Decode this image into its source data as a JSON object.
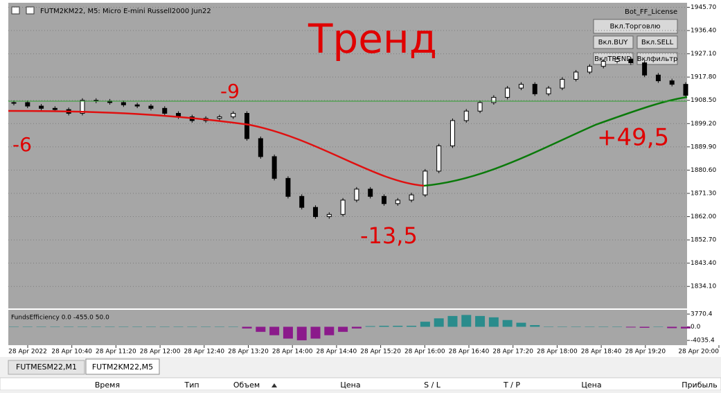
{
  "window": {
    "title": "FUTM2KM22, M5:  Micro E-mini Russell2000 Jun22",
    "license": "Bot_FF_License"
  },
  "buttons": [
    "Вкл.Торговлю",
    "Вкл.BUY",
    "Вкл.SELL",
    "ВклTREND",
    "Вклфильтр"
  ],
  "annotations": [
    "Тренд",
    "-6",
    "-9",
    "-13,5",
    "+49,5"
  ],
  "chart_data": {
    "type": "candlestick",
    "values": [
      1907.6,
      1906.2,
      1905.3,
      1904.8,
      1903.3,
      1908.5,
      1908.2,
      1907.6,
      1906.7,
      1906.2,
      1905.3,
      1903.3,
      1901.9,
      1900.4,
      1901.3,
      1901.9,
      1903.3,
      1893.2,
      1886.0,
      1877.3,
      1870.1,
      1865.7,
      1862.0,
      1862.9,
      1868.6,
      1873.0,
      1870.1,
      1867.2,
      1868.6,
      1870.7,
      1880.2,
      1890.3,
      1900.4,
      1904.2,
      1907.6,
      1909.7,
      1913.4,
      1914.9,
      1911.1,
      1913.4,
      1916.9,
      1919.8,
      1922.1,
      1924.1,
      1925.0,
      1923.5,
      1918.6,
      1916.3,
      1914.9,
      1910.5
    ],
    "ylim": [
      1825.3,
      1947.5
    ],
    "yticks": [
      {
        "value": 1945.7,
        "label": "1945.70"
      },
      {
        "value": 1936.4,
        "label": "1936.40"
      },
      {
        "value": 1927.1,
        "label": "1927.10"
      },
      {
        "value": 1917.8,
        "label": "1917.80"
      },
      {
        "value": 1908.5,
        "label": "1908.50"
      },
      {
        "value": 1899.2,
        "label": "1899.20"
      },
      {
        "value": 1889.9,
        "label": "1889.90"
      },
      {
        "value": 1880.6,
        "label": "1880.60"
      },
      {
        "value": 1871.3,
        "label": "1871.30"
      },
      {
        "value": 1862.0,
        "label": "1862.00"
      },
      {
        "value": 1852.7,
        "label": "1852.70"
      },
      {
        "value": 1843.4,
        "label": "1843.40"
      },
      {
        "value": 1834.1,
        "label": "1834.10"
      }
    ],
    "x_labels": [
      "28 Apr 2022",
      "28 Apr 10:40",
      "28 Apr 11:20",
      "28 Apr 12:00",
      "28 Apr 12:40",
      "28 Apr 13:20",
      "28 Apr 14:00",
      "28 Apr 14:40",
      "28 Apr 15:20",
      "28 Apr 16:00",
      "28 Apr 16:40",
      "28 Apr 17:20",
      "28 Apr 18:00",
      "28 Apr 18:40",
      "28 Apr 19:20",
      "28 Apr 20:00"
    ],
    "indicator": {
      "name": "FundsEfficiency 0.0 -455.0 50.0",
      "values": [
        0,
        0,
        0,
        0,
        0,
        0,
        0,
        0,
        0,
        0,
        0,
        0,
        0,
        0,
        0,
        0,
        0,
        -500,
        -1500,
        -2500,
        -3500,
        -4000,
        -3500,
        -2500,
        -1500,
        -500,
        200,
        300,
        300,
        300,
        1500,
        2500,
        3200,
        3500,
        3200,
        2800,
        2000,
        1200,
        500,
        0,
        0,
        0,
        0,
        0,
        0,
        -200,
        -300,
        0,
        -400,
        -500
      ],
      "ylim": [
        -5450,
        5024
      ],
      "yticks": [
        3770.4,
        {
          "value": 0,
          "label": "0.0"
        },
        -4035.4
      ]
    }
  },
  "tabs": [
    "FUTMESM22,M1",
    "FUTM2KM22,M5"
  ],
  "columns": [
    "Время",
    "Тип",
    "Объем",
    "Цена",
    "S / L",
    "T / P",
    "Цена",
    "Прибыль"
  ]
}
